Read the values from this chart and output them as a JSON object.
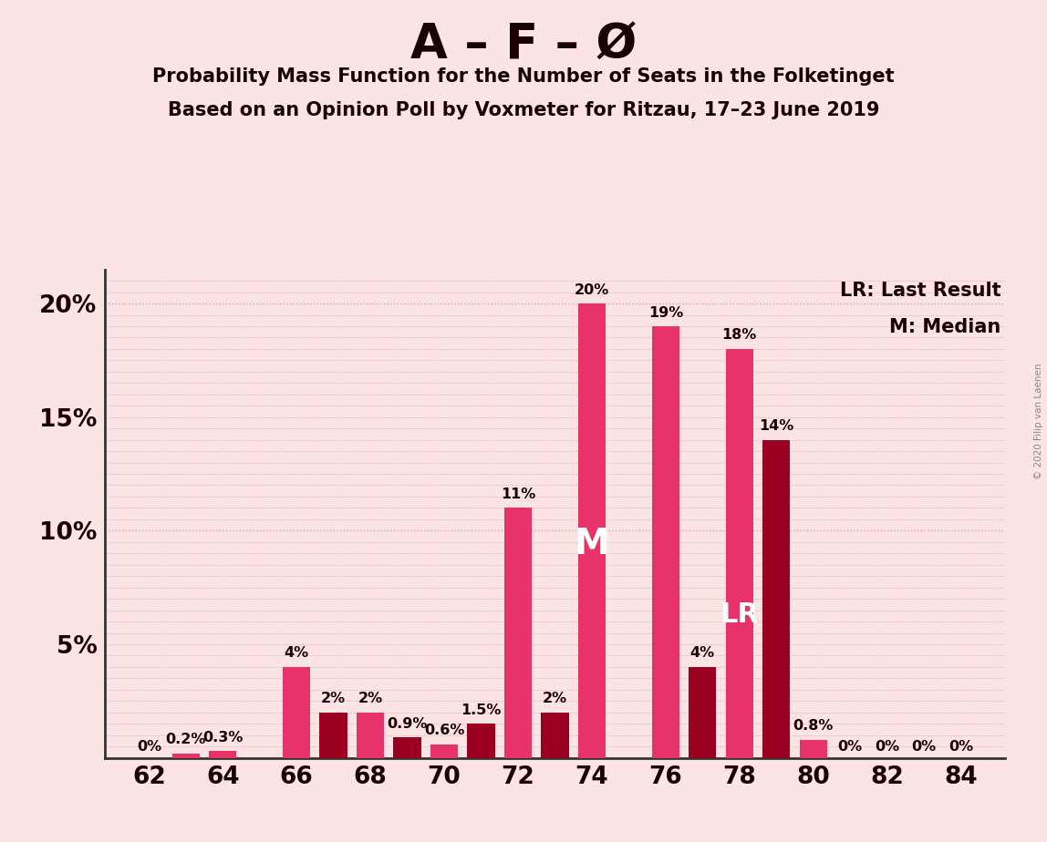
{
  "title_main": "A – F – Ø",
  "title_sub1": "Probability Mass Function for the Number of Seats in the Folketinget",
  "title_sub2": "Based on an Opinion Poll by Voxmeter for Ritzau, 17–23 June 2019",
  "copyright": "© 2020 Filip van Laenen",
  "background_color": "#fce4e4",
  "bar_color_pink": "#e8336a",
  "bar_color_dark": "#9b0020",
  "seats": [
    62,
    63,
    64,
    65,
    66,
    67,
    68,
    69,
    70,
    71,
    72,
    73,
    74,
    75,
    76,
    77,
    78,
    79,
    80,
    81,
    82,
    83,
    84
  ],
  "pmf_values": [
    0.0,
    0.002,
    0.003,
    0.0,
    0.04,
    0.02,
    0.02,
    0.009,
    0.006,
    0.015,
    0.11,
    0.02,
    0.2,
    0.0,
    0.19,
    0.04,
    0.18,
    0.14,
    0.008,
    0.0,
    0.0,
    0.0,
    0.0
  ],
  "bar_type": [
    "p",
    "p",
    "p",
    "p",
    "p",
    "d",
    "p",
    "d",
    "p",
    "d",
    "p",
    "d",
    "p",
    "p",
    "p",
    "d",
    "p",
    "d",
    "p",
    "p",
    "p",
    "p",
    "p"
  ],
  "bar_labels": [
    "0%",
    "0.2%",
    "0.3%",
    "",
    "4%",
    "2%",
    "2%",
    "0.9%",
    "0.6%",
    "1.5%",
    "11%",
    "2%",
    "20%",
    "",
    "19%",
    "4%",
    "18%",
    "14%",
    "0.8%",
    "0%",
    "0%",
    "0%",
    "0%"
  ],
  "median_seat_idx": 12,
  "lr_seat_idx": 16,
  "lr_label": "LR",
  "median_label": "M",
  "legend_lr": "LR: Last Result",
  "legend_m": "M: Median",
  "ylim": [
    0,
    0.215
  ],
  "yticks": [
    0.0,
    0.05,
    0.1,
    0.15,
    0.2
  ],
  "ytick_labels": [
    "",
    "5%",
    "10%",
    "15%",
    "20%"
  ],
  "xtick_seats": [
    62,
    64,
    66,
    68,
    70,
    72,
    74,
    76,
    78,
    80,
    82,
    84
  ],
  "grid_color": "#d4a0a8",
  "text_color": "#1a0000",
  "spine_color": "#333333"
}
